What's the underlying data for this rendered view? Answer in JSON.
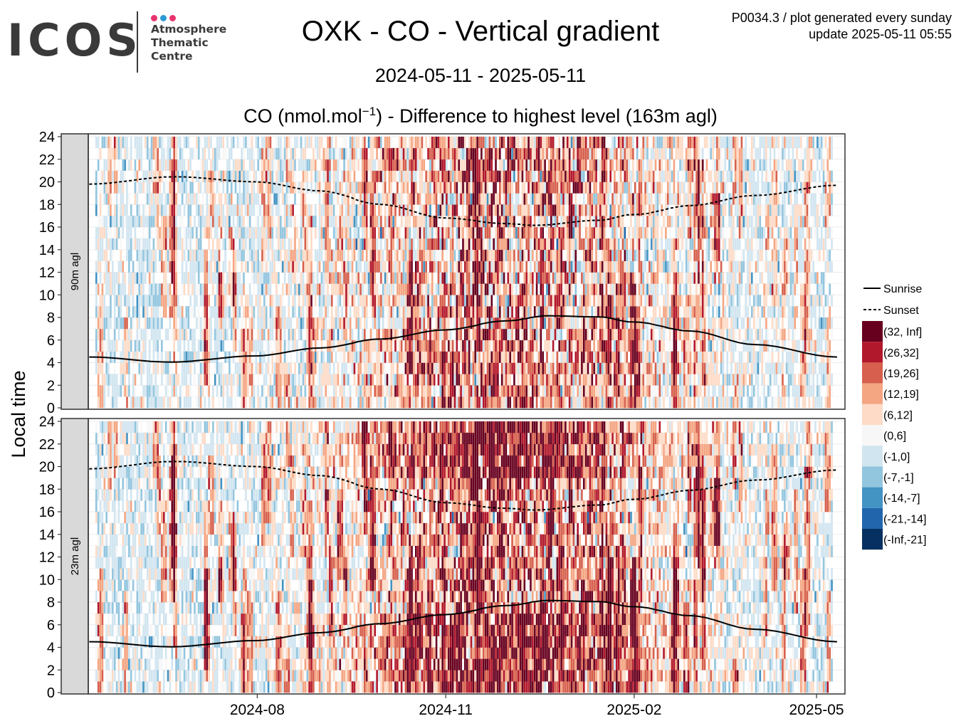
{
  "header": {
    "logo": {
      "wordmark": "ICOS",
      "lines": [
        "Atmosphere",
        "Thematic",
        "Centre"
      ],
      "dot_colors": [
        "#e8336d",
        "#2b9ad6",
        "#e8336d"
      ]
    },
    "title": "OXK - CO - Vertical gradient",
    "meta_line1": "P0034.3 / plot generated every sunday",
    "meta_line2": "update  2025-05-11 05:55",
    "date_range": "2024-05-11 - 2025-05-11",
    "subtitle_pre": "CO (nmol.mol",
    "subtitle_sup": "−1",
    "subtitle_post": ") - Difference to highest level (163m agl)"
  },
  "chart_data": {
    "type": "heatmap",
    "ylabel": "Local time",
    "x_start": "2024-05-11",
    "x_end": "2025-05-11",
    "x_ticks": [
      "2024-08",
      "2024-11",
      "2025-02",
      "2025-05"
    ],
    "x_tick_dates": [
      "2024-08-01",
      "2024-11-01",
      "2025-02-01",
      "2025-05-01"
    ],
    "ylim": [
      0,
      24
    ],
    "y_ticks": [
      0,
      2,
      4,
      6,
      8,
      10,
      12,
      14,
      16,
      18,
      20,
      22,
      24
    ],
    "panels": [
      {
        "label": "90m agl",
        "intensity": 0.75,
        "winter_dominant": false
      },
      {
        "label": "23m agl",
        "intensity": 1.0,
        "winter_dominant": true
      }
    ],
    "legend": {
      "lines": [
        {
          "label": "Sunrise",
          "style": "solid"
        },
        {
          "label": "Sunset",
          "style": "dashed"
        }
      ],
      "bins": [
        {
          "label": "(32, Inf]",
          "color": "#67001f"
        },
        {
          "label": "(26,32]",
          "color": "#b2182b"
        },
        {
          "label": "(19,26]",
          "color": "#d6604d"
        },
        {
          "label": "(12,19]",
          "color": "#f4a582"
        },
        {
          "label": "(6,12]",
          "color": "#fddbc7"
        },
        {
          "label": "(0,6]",
          "color": "#f7f7f7"
        },
        {
          "label": "(-1,0]",
          "color": "#d1e5f0"
        },
        {
          "label": "(-7,-1]",
          "color": "#92c5de"
        },
        {
          "label": "(-14,-7]",
          "color": "#4393c3"
        },
        {
          "label": "(-21,-14]",
          "color": "#2166ac"
        },
        {
          "label": "(-Inf,-21]",
          "color": "#053061"
        }
      ]
    },
    "sunrise": [
      {
        "date": "2024-05-11",
        "hour": 4.5
      },
      {
        "date": "2024-06-20",
        "hour": 4.05
      },
      {
        "date": "2024-08-01",
        "hour": 4.6
      },
      {
        "date": "2024-09-01",
        "hour": 5.3
      },
      {
        "date": "2024-10-01",
        "hour": 6.1
      },
      {
        "date": "2024-11-01",
        "hour": 6.9
      },
      {
        "date": "2024-12-01",
        "hour": 7.7
      },
      {
        "date": "2024-12-21",
        "hour": 8.15
      },
      {
        "date": "2025-01-15",
        "hour": 8.05
      },
      {
        "date": "2025-02-01",
        "hour": 7.6
      },
      {
        "date": "2025-03-01",
        "hour": 6.8
      },
      {
        "date": "2025-04-01",
        "hour": 5.6
      },
      {
        "date": "2025-05-11",
        "hour": 4.5
      }
    ],
    "sunset": [
      {
        "date": "2024-05-11",
        "hour": 19.8
      },
      {
        "date": "2024-06-22",
        "hour": 20.45
      },
      {
        "date": "2024-08-01",
        "hour": 20.0
      },
      {
        "date": "2024-09-01",
        "hour": 19.2
      },
      {
        "date": "2024-10-01",
        "hour": 18.0
      },
      {
        "date": "2024-11-01",
        "hour": 16.8
      },
      {
        "date": "2024-12-01",
        "hour": 16.3
      },
      {
        "date": "2024-12-15",
        "hour": 16.15
      },
      {
        "date": "2025-01-15",
        "hour": 16.6
      },
      {
        "date": "2025-02-01",
        "hour": 17.1
      },
      {
        "date": "2025-03-01",
        "hour": 17.9
      },
      {
        "date": "2025-04-01",
        "hour": 18.8
      },
      {
        "date": "2025-05-11",
        "hour": 19.7
      }
    ]
  }
}
